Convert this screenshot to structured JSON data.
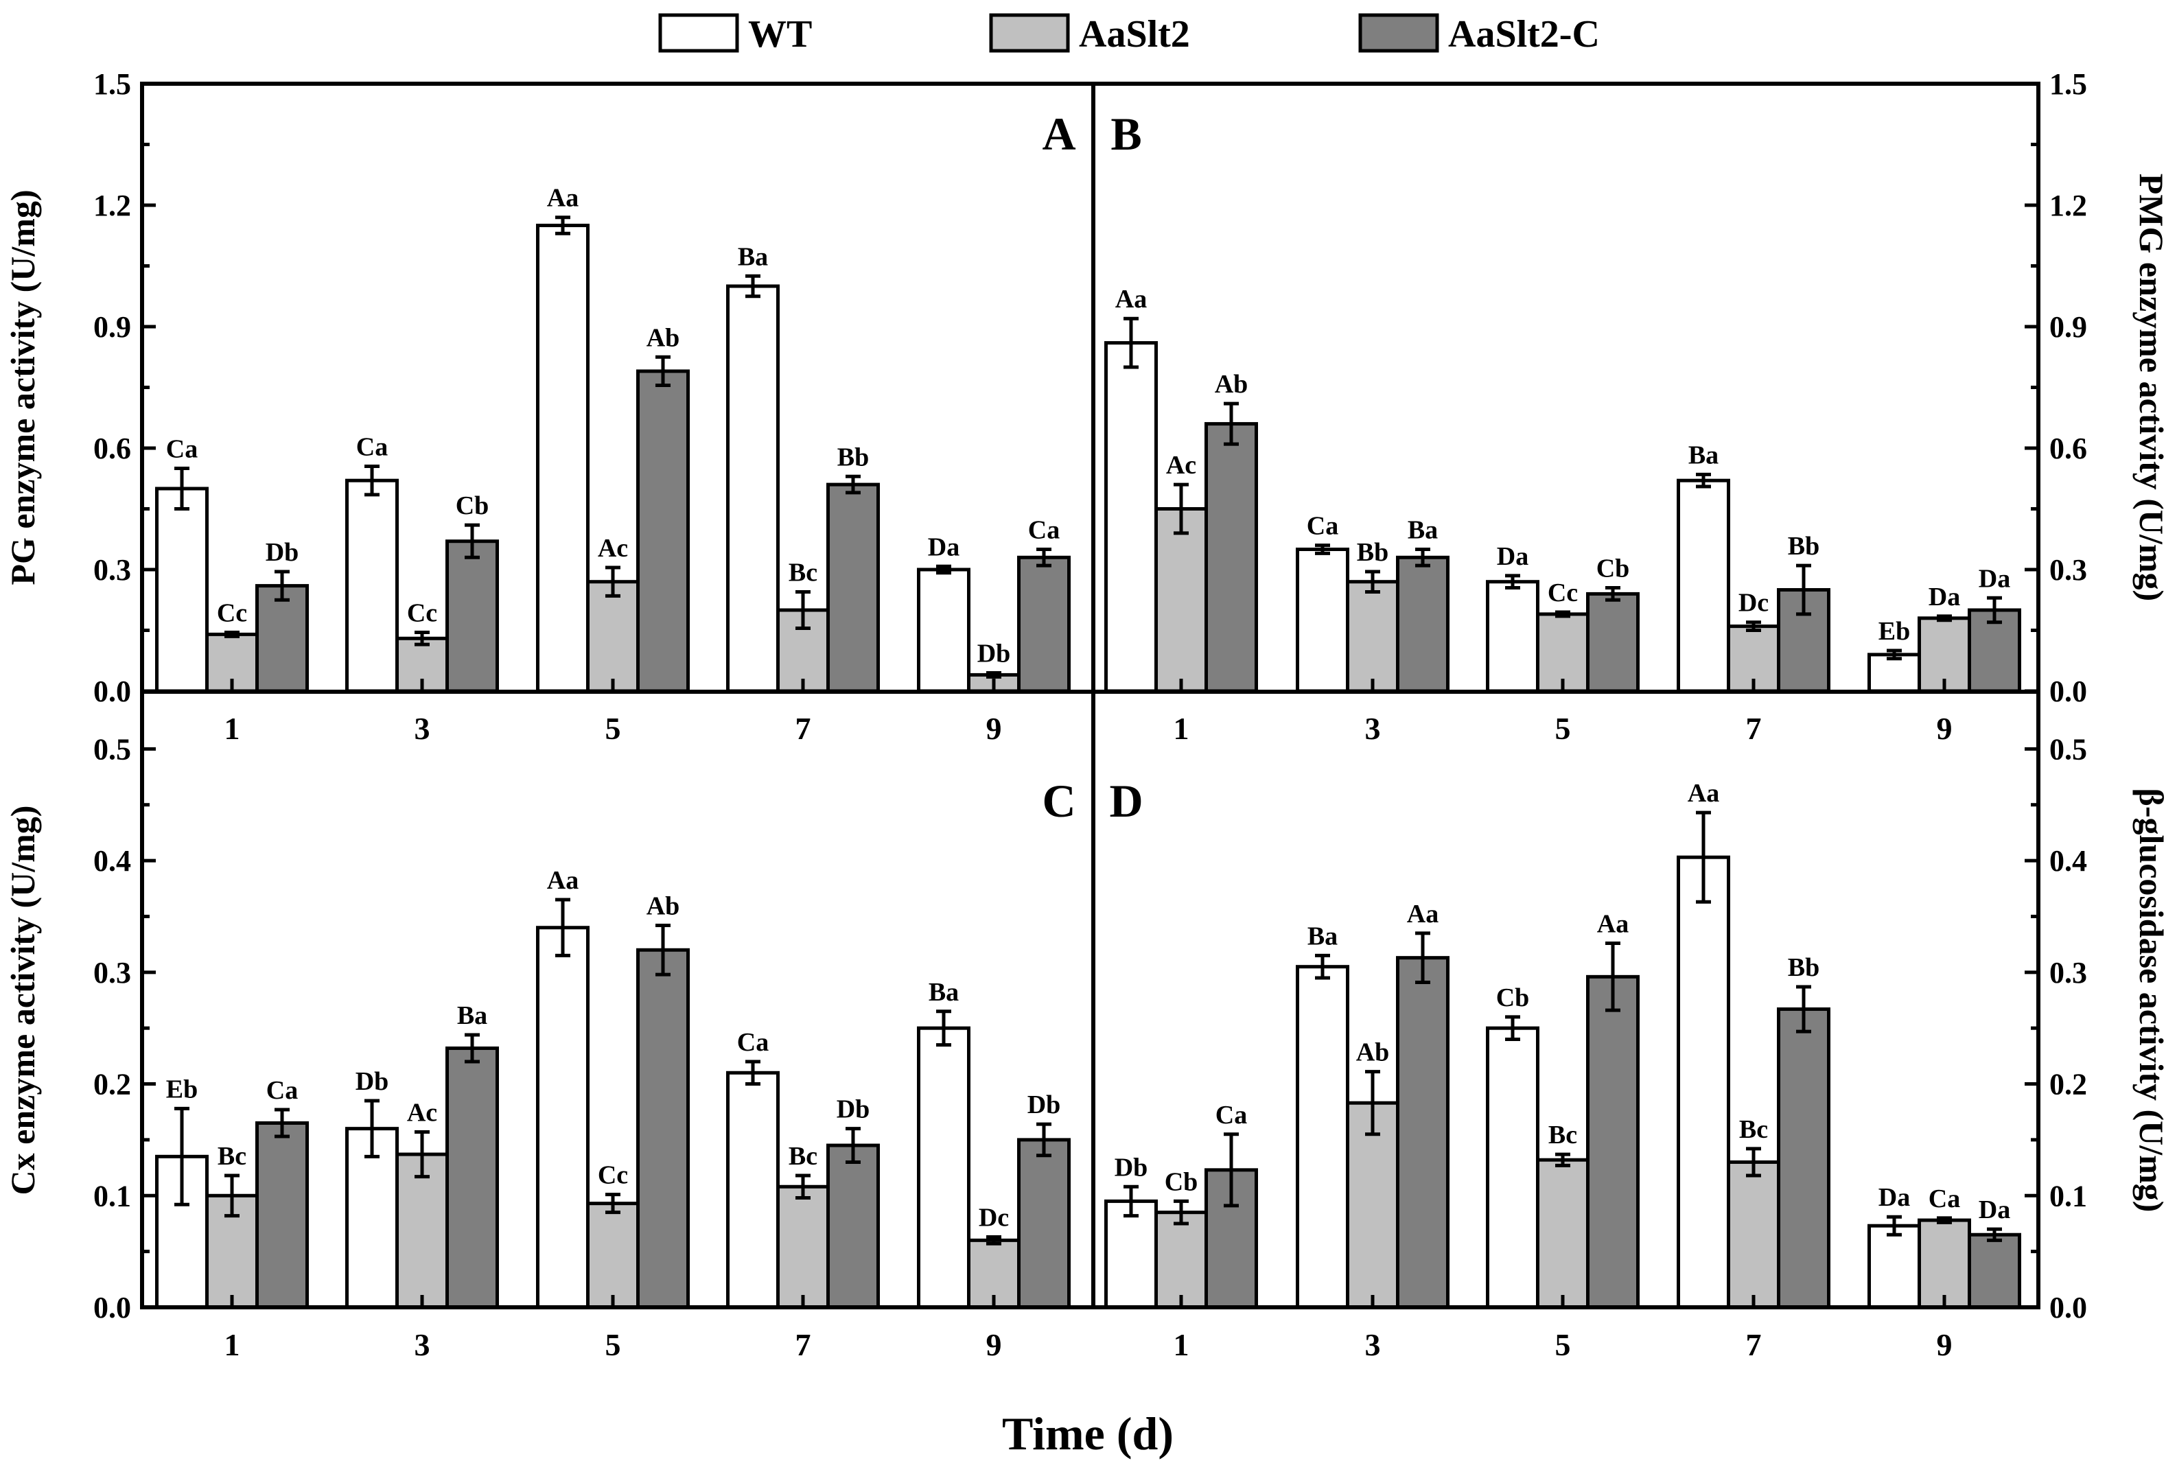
{
  "legend": [
    {
      "name": "WT",
      "color": "#ffffff"
    },
    {
      "name": "AaSlt2",
      "color": "#c0c0c0"
    },
    {
      "name": "AaSlt2-C",
      "color": "#7f7f7f"
    }
  ],
  "x_title": "Time (d)",
  "chart_data": [
    {
      "type": "bar",
      "panel": "A",
      "position": "top-left",
      "categories": [
        "1",
        "3",
        "5",
        "7",
        "9"
      ],
      "ylabel": "PG enzyme activity  (U/mg)",
      "ylim": [
        0,
        1.5
      ],
      "yticks": [
        "0.0",
        "0.3",
        "0.6",
        "0.9",
        "1.2",
        "1.5"
      ],
      "y_axis_side": "left",
      "series": [
        {
          "name": "WT",
          "values": [
            0.5,
            0.52,
            1.15,
            1.0,
            0.3
          ],
          "errors": [
            0.05,
            0.035,
            0.02,
            0.025,
            0.008
          ],
          "labels": [
            "Ca",
            "Ca",
            "Aa",
            "Ba",
            "Da"
          ]
        },
        {
          "name": "AaSlt2",
          "values": [
            0.14,
            0.13,
            0.27,
            0.2,
            0.04
          ],
          "errors": [
            0.005,
            0.015,
            0.035,
            0.045,
            0.005
          ],
          "labels": [
            "Cc",
            "Cc",
            "Ac",
            "Bc",
            "Db"
          ]
        },
        {
          "name": "AaSlt2-C",
          "values": [
            0.26,
            0.37,
            0.79,
            0.51,
            0.33
          ],
          "errors": [
            0.035,
            0.04,
            0.035,
            0.02,
            0.02
          ],
          "labels": [
            "Db",
            "Cb",
            "Ab",
            "Bb",
            "Ca"
          ]
        }
      ]
    },
    {
      "type": "bar",
      "panel": "B",
      "position": "top-right",
      "categories": [
        "1",
        "3",
        "5",
        "7",
        "9"
      ],
      "ylabel": "PMG enzyme activity  (U/mg)",
      "ylim": [
        0,
        1.5
      ],
      "yticks": [
        "0.0",
        "0.3",
        "0.6",
        "0.9",
        "1.2",
        "1.5"
      ],
      "y_axis_side": "right",
      "series": [
        {
          "name": "WT",
          "values": [
            0.86,
            0.35,
            0.27,
            0.52,
            0.09
          ],
          "errors": [
            0.06,
            0.01,
            0.015,
            0.015,
            0.01
          ],
          "labels": [
            "Aa",
            "Ca",
            "Da",
            "Ba",
            "Eb"
          ]
        },
        {
          "name": "AaSlt2",
          "values": [
            0.45,
            0.27,
            0.19,
            0.16,
            0.18
          ],
          "errors": [
            0.06,
            0.025,
            0.005,
            0.01,
            0.005
          ],
          "labels": [
            "Ac",
            "Bb",
            "Cc",
            "Dc",
            "Da"
          ]
        },
        {
          "name": "AaSlt2-C",
          "values": [
            0.66,
            0.33,
            0.24,
            0.25,
            0.2
          ],
          "errors": [
            0.05,
            0.02,
            0.015,
            0.06,
            0.03
          ],
          "labels": [
            "Ab",
            "Ba",
            "Cb",
            "Bb",
            "Da"
          ]
        }
      ]
    },
    {
      "type": "bar",
      "panel": "C",
      "position": "bottom-left",
      "categories": [
        "1",
        "3",
        "5",
        "7",
        "9"
      ],
      "ylabel": "Cx enzyme activity  (U/mg)",
      "ylim": [
        0,
        0.55
      ],
      "yticks": [
        "0.0",
        "0.1",
        "0.2",
        "0.3",
        "0.4",
        "0.5"
      ],
      "y_axis_side": "left",
      "series": [
        {
          "name": "WT",
          "values": [
            0.135,
            0.16,
            0.34,
            0.21,
            0.25
          ],
          "errors": [
            0.043,
            0.025,
            0.025,
            0.01,
            0.015
          ],
          "labels": [
            "Eb",
            "Db",
            "Aa",
            "Ca",
            "Ba"
          ]
        },
        {
          "name": "AaSlt2",
          "values": [
            0.1,
            0.137,
            0.093,
            0.108,
            0.06
          ],
          "errors": [
            0.018,
            0.02,
            0.008,
            0.01,
            0.003
          ],
          "labels": [
            "Bc",
            "Ac",
            "Cc",
            "Bc",
            "Dc"
          ]
        },
        {
          "name": "AaSlt2-C",
          "values": [
            0.165,
            0.232,
            0.32,
            0.145,
            0.15
          ],
          "errors": [
            0.012,
            0.012,
            0.022,
            0.015,
            0.014
          ],
          "labels": [
            "Ca",
            "Ba",
            "Ab",
            "Db",
            "Db"
          ]
        }
      ]
    },
    {
      "type": "bar",
      "panel": "D",
      "position": "bottom-right",
      "categories": [
        "1",
        "3",
        "5",
        "7",
        "9"
      ],
      "ylabel": "β-glucosidase activity  (U/mg)",
      "ylim": [
        0,
        0.55
      ],
      "yticks": [
        "0.0",
        "0.1",
        "0.2",
        "0.3",
        "0.4",
        "0.5"
      ],
      "y_axis_side": "right",
      "series": [
        {
          "name": "WT",
          "values": [
            0.095,
            0.305,
            0.25,
            0.403,
            0.073
          ],
          "errors": [
            0.013,
            0.01,
            0.01,
            0.04,
            0.008
          ],
          "labels": [
            "Db",
            "Ba",
            "Cb",
            "Aa",
            "Da"
          ]
        },
        {
          "name": "AaSlt2",
          "values": [
            0.085,
            0.183,
            0.132,
            0.13,
            0.078
          ],
          "errors": [
            0.01,
            0.028,
            0.005,
            0.012,
            0.002
          ],
          "labels": [
            "Cb",
            "Ab",
            "Bc",
            "Bc",
            "Ca"
          ]
        },
        {
          "name": "AaSlt2-C",
          "values": [
            0.123,
            0.313,
            0.296,
            0.267,
            0.065
          ],
          "errors": [
            0.032,
            0.022,
            0.03,
            0.02,
            0.005
          ],
          "labels": [
            "Ca",
            "Aa",
            "Aa",
            "Bb",
            "Da"
          ]
        }
      ]
    }
  ]
}
